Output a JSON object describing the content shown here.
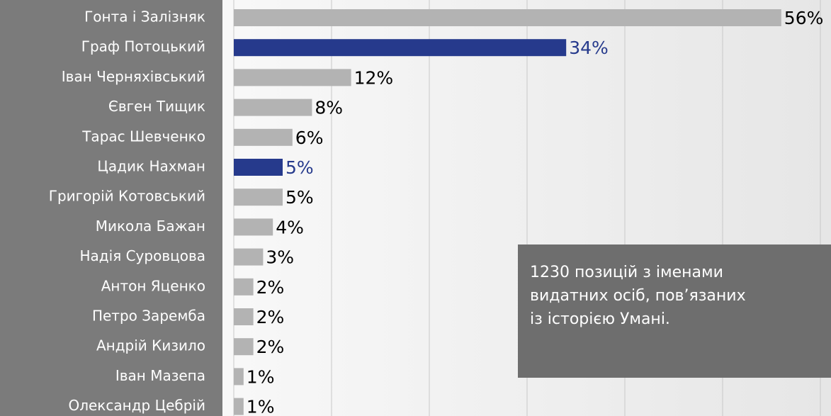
{
  "chart_data": {
    "type": "bar",
    "orientation": "horizontal",
    "categories": [
      "Гонта і Залізняк",
      "Граф Потоцький",
      "Іван Черняхівський",
      "Євген Тищик",
      "Тарас Шевченко",
      "Цадик Нахман",
      "Григорій Котовський",
      "Микола Бажан",
      "Надія Суровцова",
      "Антон Яценко",
      "Петро Заремба",
      "Андрій Кизило",
      "Іван Мазепа",
      "Олександр Цебрій"
    ],
    "values": [
      56,
      34,
      12,
      8,
      6,
      5,
      5,
      4,
      3,
      2,
      2,
      2,
      1,
      1
    ],
    "value_labels": [
      "56%",
      "34%",
      "12%",
      "8%",
      "6%",
      "5%",
      "5%",
      "4%",
      "3%",
      "2%",
      "2%",
      "2%",
      "1%",
      "1%"
    ],
    "colors": [
      "#b3b3b3",
      "#263a8c",
      "#b3b3b3",
      "#b3b3b3",
      "#b3b3b3",
      "#263a8c",
      "#b3b3b3",
      "#b3b3b3",
      "#b3b3b3",
      "#b3b3b3",
      "#b3b3b3",
      "#b3b3b3",
      "#b3b3b3",
      "#b3b3b3"
    ],
    "xlim": [
      0,
      60
    ],
    "xticks": [
      0,
      10,
      20,
      30,
      40,
      50,
      60
    ],
    "grid": true,
    "annotation": [
      "1230 позицій з іменами",
      "видатних осіб, пов’язаних",
      "із історією Умані."
    ]
  }
}
